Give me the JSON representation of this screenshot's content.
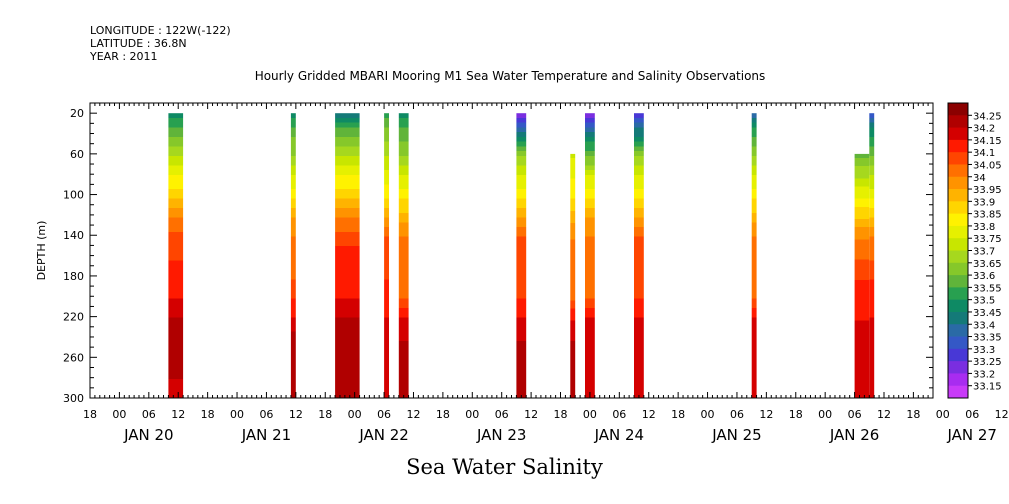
{
  "header": {
    "longitude": "LONGITUDE : 122W(-122)",
    "latitude": "LATITUDE : 36.8N",
    "year": "YEAR : 2011"
  },
  "chart_data": {
    "type": "heatmap",
    "title": "Hourly Gridded MBARI Mooring M1 Sea Water Temperature and Salinity Observations",
    "footer": "Sea Water Salinity",
    "ylabel": "DEPTH (m)",
    "ylim": [
      300,
      10
    ],
    "y_ticks": [
      20,
      60,
      100,
      140,
      180,
      220,
      260,
      300
    ],
    "x_start": "JAN 20 12:00",
    "x_end": "JAN 27 16:00",
    "x_tick_labels": [
      "18",
      "00",
      "06",
      "12",
      "18",
      "00",
      "06",
      "12",
      "18",
      "00",
      "06",
      "12",
      "18",
      "00",
      "06",
      "12",
      "18",
      "00",
      "06",
      "12",
      "18",
      "00",
      "06",
      "12",
      "18",
      "00",
      "06",
      "12",
      "18",
      "00",
      "06",
      "12"
    ],
    "x_day_labels": [
      "JAN 20",
      "JAN 21",
      "JAN 22",
      "JAN 23",
      "JAN 24",
      "JAN 25",
      "JAN 26",
      "JAN 27"
    ],
    "colorbar": {
      "levels": [
        "34.25",
        "34.2",
        "34.15",
        "34.1",
        "34.05",
        "34",
        "33.95",
        "33.9",
        "33.85",
        "33.8",
        "33.75",
        "33.7",
        "33.65",
        "33.6",
        "33.55",
        "33.5",
        "33.45",
        "33.4",
        "33.35",
        "33.3",
        "33.25",
        "33.2",
        "33.15"
      ],
      "colors": [
        "#8b0000",
        "#b00000",
        "#d40000",
        "#ff1a00",
        "#ff4500",
        "#ff7000",
        "#ff9300",
        "#ffb300",
        "#ffd500",
        "#fff200",
        "#e6f000",
        "#c8e600",
        "#a6d81e",
        "#86c82a",
        "#60b43a",
        "#28a050",
        "#0e8a64",
        "#147a78",
        "#2a6aa6",
        "#3458c6",
        "#4838d6",
        "#7a2ee0",
        "#a82cf0",
        "#c83af8"
      ]
    },
    "series": [
      {
        "start": "JAN 21 04:00",
        "end": "JAN 21 07:00",
        "top_depth": 20,
        "profile": [
          [
            20,
            33.5
          ],
          [
            40,
            33.6
          ],
          [
            60,
            33.7
          ],
          [
            80,
            33.8
          ],
          [
            100,
            33.9
          ],
          [
            120,
            34.0
          ],
          [
            140,
            34.07
          ],
          [
            160,
            34.1
          ],
          [
            200,
            34.15
          ],
          [
            220,
            34.2
          ],
          [
            240,
            34.25
          ],
          [
            260,
            34.25
          ],
          [
            280,
            34.2
          ],
          [
            300,
            34.2
          ]
        ]
      },
      {
        "start": "JAN 22 05:00",
        "end": "JAN 22 06:00",
        "top_depth": 20,
        "profile": [
          [
            20,
            33.5
          ],
          [
            40,
            33.6
          ],
          [
            60,
            33.65
          ],
          [
            80,
            33.75
          ],
          [
            100,
            33.85
          ],
          [
            120,
            33.95
          ],
          [
            140,
            34.0
          ],
          [
            180,
            34.05
          ],
          [
            220,
            34.15
          ],
          [
            240,
            34.25
          ],
          [
            260,
            34.25
          ],
          [
            300,
            34.2
          ]
        ]
      },
      {
        "start": "JAN 22 14:00",
        "end": "JAN 22 19:00",
        "top_depth": 20,
        "profile": [
          [
            20,
            33.45
          ],
          [
            40,
            33.6
          ],
          [
            60,
            33.7
          ],
          [
            80,
            33.8
          ],
          [
            100,
            33.9
          ],
          [
            120,
            34.0
          ],
          [
            140,
            34.08
          ],
          [
            160,
            34.12
          ],
          [
            200,
            34.15
          ],
          [
            220,
            34.2
          ],
          [
            240,
            34.25
          ],
          [
            280,
            34.25
          ],
          [
            300,
            34.2
          ]
        ]
      },
      {
        "start": "JAN 23 00:00",
        "end": "JAN 23 01:00",
        "top_depth": 20,
        "profile": [
          [
            20,
            33.55
          ],
          [
            60,
            33.7
          ],
          [
            100,
            33.85
          ],
          [
            140,
            34.05
          ],
          [
            180,
            34.1
          ],
          [
            220,
            34.15
          ],
          [
            260,
            34.2
          ],
          [
            300,
            34.2
          ]
        ]
      },
      {
        "start": "JAN 23 03:00",
        "end": "JAN 23 05:00",
        "top_depth": 20,
        "profile": [
          [
            20,
            33.5
          ],
          [
            60,
            33.65
          ],
          [
            100,
            33.85
          ],
          [
            140,
            34.0
          ],
          [
            160,
            34.05
          ],
          [
            200,
            34.05
          ],
          [
            220,
            34.15
          ],
          [
            240,
            34.2
          ],
          [
            260,
            34.25
          ],
          [
            300,
            34.2
          ]
        ]
      },
      {
        "start": "JAN 24 03:00",
        "end": "JAN 24 05:00",
        "top_depth": 20,
        "profile": [
          [
            20,
            33.25
          ],
          [
            40,
            33.45
          ],
          [
            60,
            33.65
          ],
          [
            80,
            33.75
          ],
          [
            100,
            33.85
          ],
          [
            120,
            33.95
          ],
          [
            140,
            34.05
          ],
          [
            200,
            34.1
          ],
          [
            220,
            34.15
          ],
          [
            240,
            34.2
          ],
          [
            260,
            34.25
          ],
          [
            300,
            34.2
          ]
        ]
      },
      {
        "start": "JAN 24 14:00",
        "end": "JAN 24 15:00",
        "top_depth": 60,
        "profile": [
          [
            60,
            33.75
          ],
          [
            100,
            33.85
          ],
          [
            140,
            34.0
          ],
          [
            200,
            34.05
          ],
          [
            220,
            34.15
          ],
          [
            260,
            34.25
          ],
          [
            300,
            34.2
          ]
        ]
      },
      {
        "start": "JAN 24 17:00",
        "end": "JAN 24 19:00",
        "top_depth": 20,
        "profile": [
          [
            20,
            33.25
          ],
          [
            40,
            33.45
          ],
          [
            60,
            33.6
          ],
          [
            80,
            33.75
          ],
          [
            100,
            33.85
          ],
          [
            120,
            33.95
          ],
          [
            140,
            34.0
          ],
          [
            200,
            34.05
          ],
          [
            220,
            34.15
          ],
          [
            260,
            34.2
          ],
          [
            300,
            34.2
          ]
        ]
      },
      {
        "start": "JAN 25 03:00",
        "end": "JAN 25 05:00",
        "top_depth": 20,
        "profile": [
          [
            20,
            33.3
          ],
          [
            40,
            33.45
          ],
          [
            60,
            33.65
          ],
          [
            80,
            33.75
          ],
          [
            100,
            33.85
          ],
          [
            120,
            33.95
          ],
          [
            140,
            34.05
          ],
          [
            200,
            34.1
          ],
          [
            220,
            34.15
          ],
          [
            260,
            34.2
          ],
          [
            300,
            34.2
          ]
        ]
      },
      {
        "start": "JAN 26 03:00",
        "end": "JAN 26 04:00",
        "top_depth": 20,
        "profile": [
          [
            20,
            33.4
          ],
          [
            40,
            33.55
          ],
          [
            60,
            33.65
          ],
          [
            100,
            33.85
          ],
          [
            140,
            34.0
          ],
          [
            200,
            34.05
          ],
          [
            220,
            34.15
          ],
          [
            260,
            34.2
          ],
          [
            300,
            34.2
          ]
        ]
      },
      {
        "start": "JAN 27 00:00",
        "end": "JAN 27 03:00",
        "top_depth": 60,
        "profile": [
          [
            60,
            33.6
          ],
          [
            80,
            33.7
          ],
          [
            100,
            33.8
          ],
          [
            120,
            33.9
          ],
          [
            140,
            34.0
          ],
          [
            180,
            34.1
          ],
          [
            220,
            34.15
          ],
          [
            240,
            34.2
          ],
          [
            280,
            34.2
          ],
          [
            300,
            34.15
          ]
        ]
      },
      {
        "start": "JAN 27 03:00",
        "end": "JAN 27 04:00",
        "top_depth": 20,
        "profile": [
          [
            20,
            33.35
          ],
          [
            40,
            33.5
          ],
          [
            60,
            33.6
          ],
          [
            100,
            33.8
          ],
          [
            140,
            34.0
          ],
          [
            180,
            34.1
          ],
          [
            220,
            34.15
          ],
          [
            300,
            34.2
          ]
        ]
      }
    ]
  }
}
